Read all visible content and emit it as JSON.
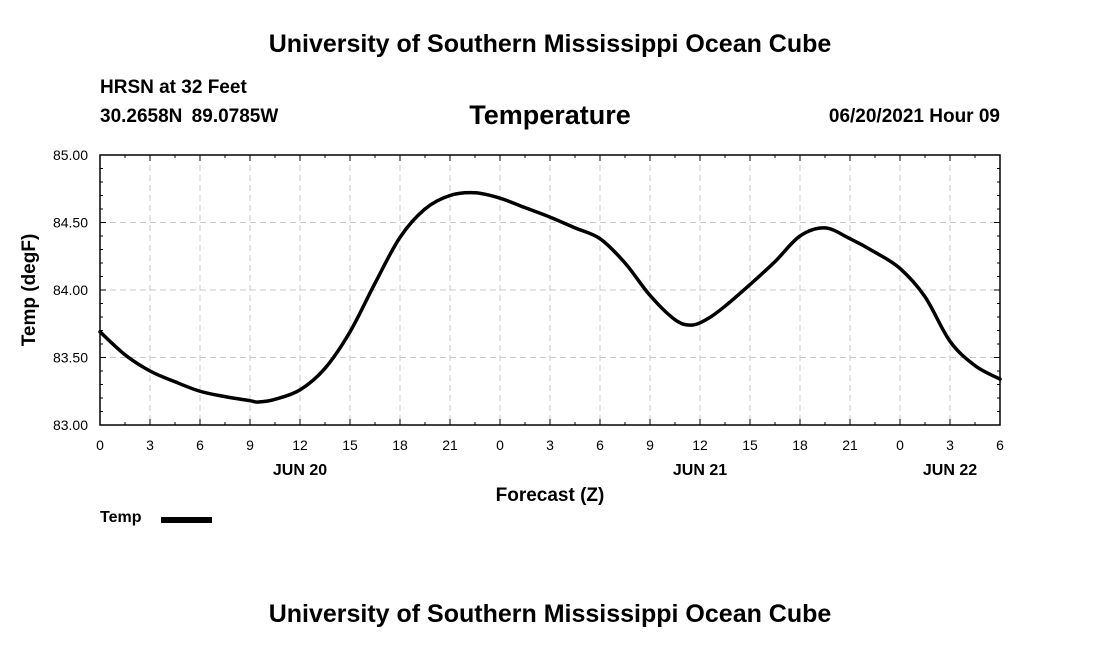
{
  "header": {
    "title": "University of Southern Mississippi Ocean Cube",
    "station": "HRSN at 32 Feet",
    "coords": "30.2658N 89.0785W",
    "variable_title": "Temperature",
    "datetime": "06/20/2021 Hour 09"
  },
  "footer": {
    "title": "University of Southern Mississippi Ocean Cube"
  },
  "legend": {
    "label": "Temp"
  },
  "chart_data": {
    "type": "line",
    "title": "Temperature",
    "xlabel": "Forecast (Z)",
    "ylabel": "Temp (degF)",
    "xlim": [
      0,
      54
    ],
    "ylim": [
      83.0,
      85.0
    ],
    "x_tick_labels": [
      "0",
      "3",
      "6",
      "9",
      "12",
      "15",
      "18",
      "21",
      "0",
      "3",
      "6",
      "9",
      "12",
      "15",
      "18",
      "21",
      "0",
      "3",
      "6"
    ],
    "y_tick_labels": [
      "83.00",
      "83.50",
      "84.00",
      "84.50",
      "85.00"
    ],
    "y_ticks": [
      83.0,
      83.5,
      84.0,
      84.5,
      85.0
    ],
    "date_labels": [
      {
        "label": "JUN 20",
        "at_hour": 12
      },
      {
        "label": "JUN 21",
        "at_hour": 36
      },
      {
        "label": "JUN 22",
        "at_hour": 51
      }
    ],
    "grid": true,
    "series": [
      {
        "name": "Temp",
        "color": "#000000",
        "x": [
          0,
          1.5,
          3,
          4.5,
          6,
          7.5,
          9,
          9.5,
          10.5,
          12,
          13.5,
          15,
          16.5,
          18,
          19.5,
          21,
          22.5,
          24,
          25.5,
          27,
          28.5,
          30,
          31.5,
          33,
          34.5,
          35.5,
          36.5,
          37.5,
          39,
          40.5,
          42,
          43.5,
          45,
          46.5,
          48,
          49.5,
          51,
          52.5,
          54
        ],
        "y": [
          83.69,
          83.52,
          83.4,
          83.32,
          83.25,
          83.21,
          83.18,
          83.17,
          83.19,
          83.26,
          83.42,
          83.69,
          84.05,
          84.39,
          84.6,
          84.7,
          84.72,
          84.68,
          84.61,
          84.54,
          84.46,
          84.38,
          84.2,
          83.96,
          83.78,
          83.74,
          83.79,
          83.88,
          84.04,
          84.21,
          84.4,
          84.46,
          84.38,
          84.28,
          84.16,
          83.95,
          83.62,
          83.44,
          83.34
        ]
      }
    ]
  }
}
